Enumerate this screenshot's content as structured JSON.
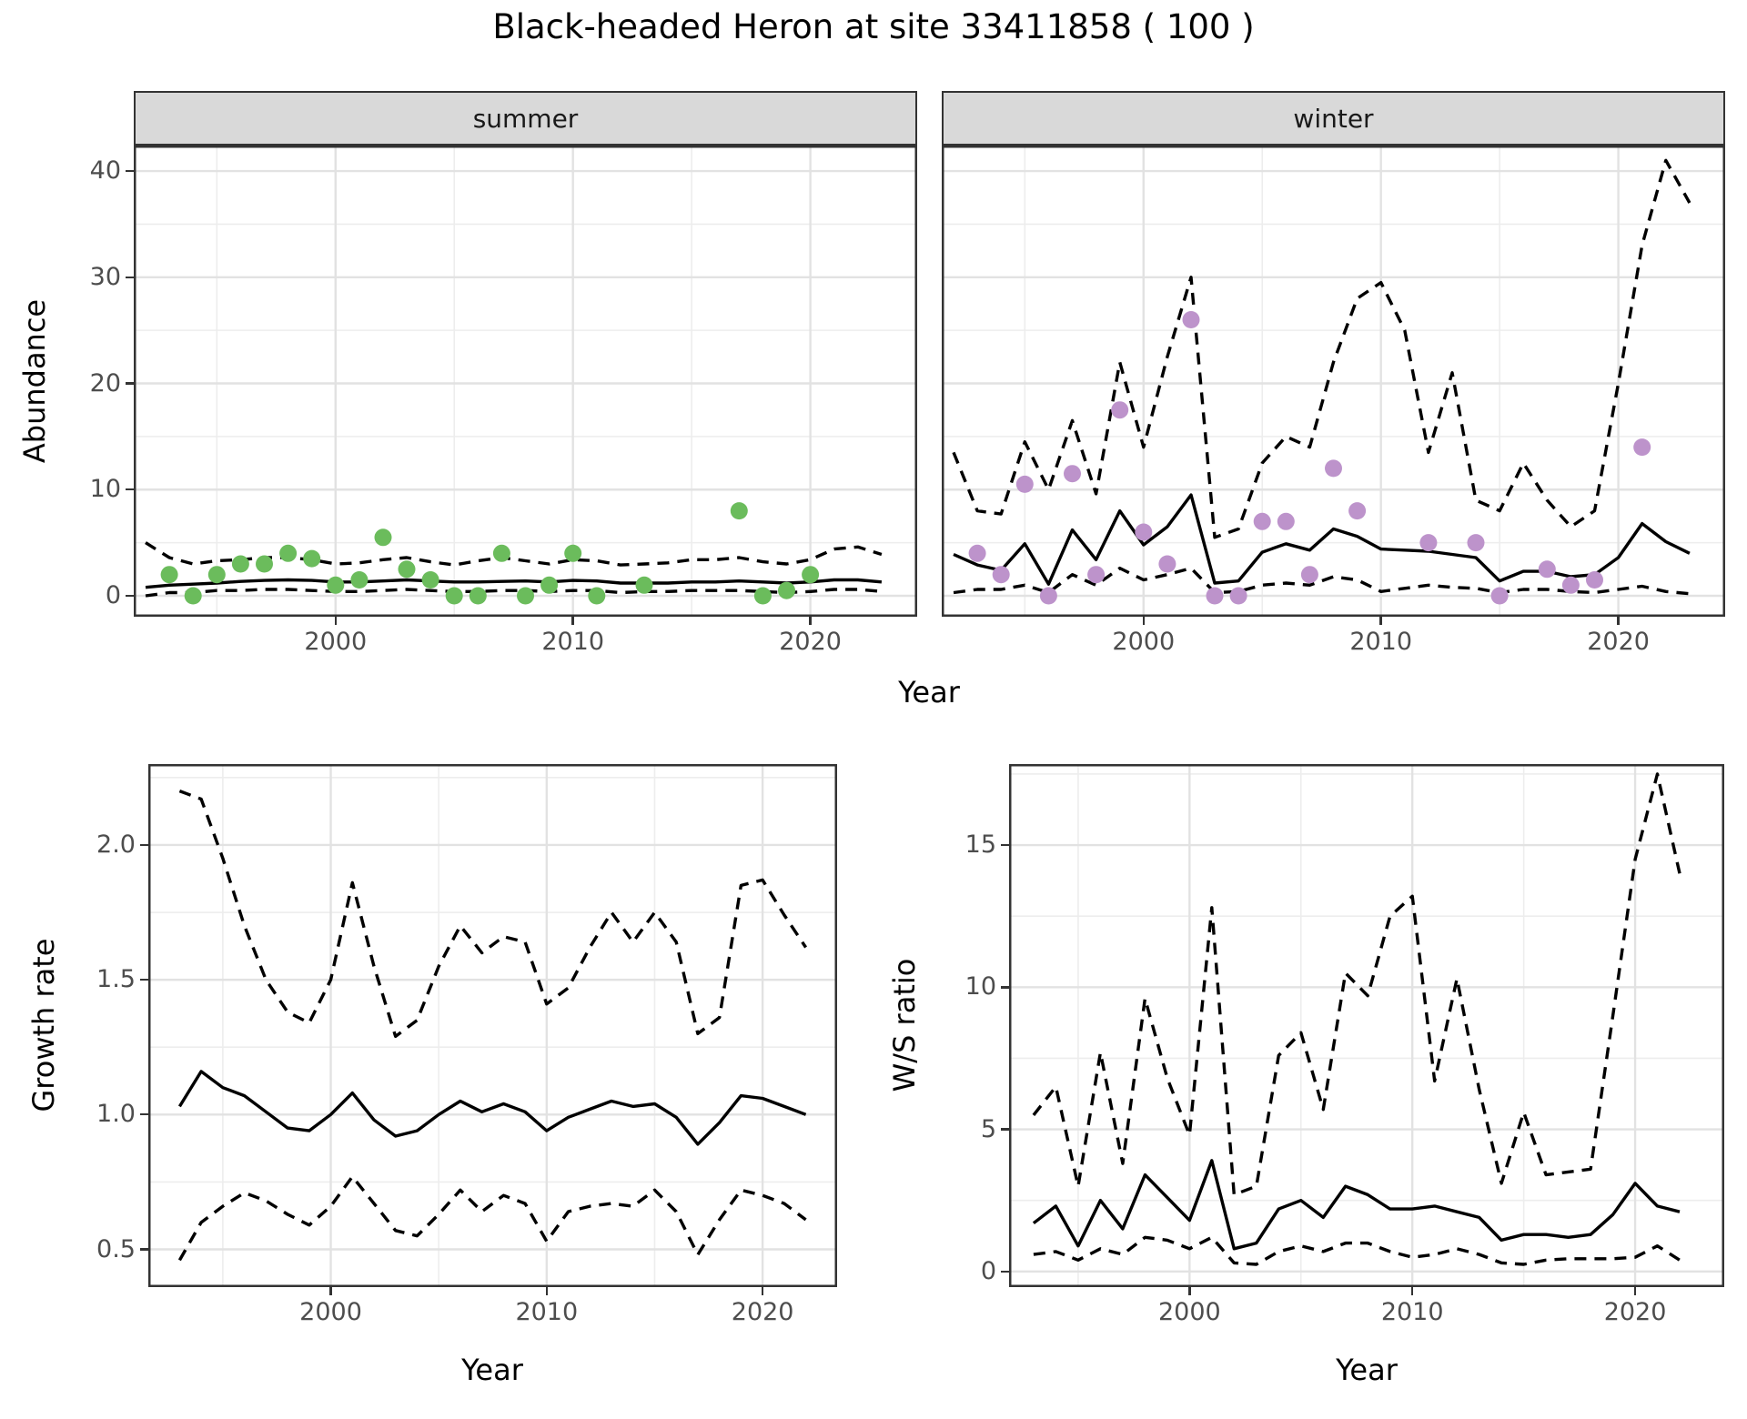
{
  "title": "Black-headed Heron at site 33411858 ( 100 )",
  "facets": [
    "summer",
    "winter"
  ],
  "axes": {
    "year_label": "Year",
    "abundance_label": "Abundance",
    "growth_label": "Growth rate",
    "ws_label": "W/S ratio"
  },
  "colors": {
    "summer_point": "#6bbc5c",
    "winter_point": "#bd93cb",
    "line": "#000000",
    "grid_major": "#e2e2e2",
    "grid_minor": "#ededed",
    "panel_border": "#333333",
    "strip_bg": "#d9d9d9",
    "tick_text": "#4d4d4d"
  },
  "chart_data": [
    {
      "key": "abundance_summer",
      "type": "line",
      "facet": "summer",
      "xlabel": "Year",
      "ylabel": "Abundance",
      "xlim": [
        1991.5,
        2024.5
      ],
      "ylim": [
        -1.97,
        42.4
      ],
      "xticks": [
        2000,
        2010,
        2020
      ],
      "xminor": [
        1995,
        2005,
        2015
      ],
      "yticks": [
        0,
        10,
        20,
        30,
        40
      ],
      "yminor": [
        5,
        15,
        25,
        35
      ],
      "y_labels": true,
      "years": [
        1992,
        1993,
        1994,
        1995,
        1996,
        1997,
        1998,
        1999,
        2000,
        2001,
        2002,
        2003,
        2004,
        2005,
        2006,
        2007,
        2008,
        2009,
        2010,
        2011,
        2012,
        2013,
        2014,
        2015,
        2016,
        2017,
        2018,
        2019,
        2020,
        2021,
        2022,
        2023
      ],
      "series": [
        {
          "name": "fit",
          "style": "solid",
          "values": [
            0.8,
            1.0,
            1.1,
            1.2,
            1.35,
            1.45,
            1.5,
            1.45,
            1.3,
            1.3,
            1.4,
            1.5,
            1.4,
            1.3,
            1.3,
            1.35,
            1.4,
            1.3,
            1.45,
            1.4,
            1.2,
            1.2,
            1.2,
            1.3,
            1.3,
            1.4,
            1.3,
            1.2,
            1.3,
            1.5,
            1.5,
            1.3
          ]
        },
        {
          "name": "upper_ci",
          "style": "dashed",
          "values": [
            5.0,
            3.6,
            3.0,
            3.3,
            3.4,
            3.6,
            3.6,
            3.4,
            3.0,
            3.1,
            3.4,
            3.6,
            3.2,
            2.9,
            3.3,
            3.6,
            3.3,
            3.0,
            3.4,
            3.3,
            2.9,
            3.0,
            3.1,
            3.4,
            3.4,
            3.6,
            3.2,
            3.0,
            3.4,
            4.4,
            4.6,
            3.9
          ]
        },
        {
          "name": "lower_ci",
          "style": "dashed",
          "values": [
            0.0,
            0.3,
            0.3,
            0.5,
            0.5,
            0.6,
            0.6,
            0.5,
            0.4,
            0.4,
            0.5,
            0.6,
            0.5,
            0.4,
            0.4,
            0.5,
            0.5,
            0.4,
            0.5,
            0.5,
            0.3,
            0.4,
            0.4,
            0.5,
            0.5,
            0.5,
            0.4,
            0.3,
            0.4,
            0.6,
            0.6,
            0.4
          ]
        }
      ],
      "points": [
        [
          1993,
          2
        ],
        [
          1994,
          0
        ],
        [
          1995,
          2
        ],
        [
          1996,
          3
        ],
        [
          1997,
          3
        ],
        [
          1998,
          4
        ],
        [
          1999,
          3.5
        ],
        [
          2000,
          1
        ],
        [
          2001,
          1.5
        ],
        [
          2002,
          5.5
        ],
        [
          2003,
          2.5
        ],
        [
          2004,
          1.5
        ],
        [
          2005,
          0
        ],
        [
          2006,
          0
        ],
        [
          2007,
          4
        ],
        [
          2008,
          0
        ],
        [
          2009,
          1
        ],
        [
          2010,
          4
        ],
        [
          2011,
          0
        ],
        [
          2013,
          1
        ],
        [
          2017,
          8
        ],
        [
          2018,
          0
        ],
        [
          2019,
          0.5
        ],
        [
          2020,
          2
        ]
      ],
      "point_color": "summer_point"
    },
    {
      "key": "abundance_winter",
      "type": "line",
      "facet": "winter",
      "xlabel": "Year",
      "ylabel": "Abundance",
      "xlim": [
        1991.5,
        2024.5
      ],
      "ylim": [
        -1.97,
        42.4
      ],
      "xticks": [
        2000,
        2010,
        2020
      ],
      "xminor": [
        1995,
        2005,
        2015
      ],
      "yticks": [
        0,
        10,
        20,
        30,
        40
      ],
      "yminor": [
        5,
        15,
        25,
        35
      ],
      "y_labels": false,
      "years": [
        1992,
        1993,
        1994,
        1995,
        1996,
        1997,
        1998,
        1999,
        2000,
        2001,
        2002,
        2003,
        2004,
        2005,
        2006,
        2007,
        2008,
        2009,
        2010,
        2011,
        2012,
        2013,
        2014,
        2015,
        2016,
        2017,
        2018,
        2019,
        2020,
        2021,
        2022,
        2023
      ],
      "series": [
        {
          "name": "fit",
          "style": "solid",
          "values": [
            3.9,
            2.9,
            2.4,
            4.9,
            1.1,
            6.2,
            3.4,
            8.0,
            4.8,
            6.5,
            9.5,
            1.2,
            1.4,
            4.1,
            4.9,
            4.3,
            6.3,
            5.6,
            4.4,
            4.3,
            4.2,
            3.9,
            3.6,
            1.4,
            2.3,
            2.3,
            1.8,
            2.0,
            3.6,
            6.8,
            5.1,
            4.0
          ]
        },
        {
          "name": "upper_ci",
          "style": "dashed",
          "values": [
            13.5,
            8.0,
            7.7,
            14.5,
            10.0,
            16.5,
            9.6,
            22.0,
            14.0,
            22.5,
            30.0,
            5.5,
            6.3,
            12.5,
            15.0,
            14.0,
            22.0,
            28.0,
            29.5,
            25.0,
            13.5,
            21.0,
            9.0,
            8.0,
            12.5,
            9.0,
            6.5,
            8.0,
            20.0,
            33.0,
            41.0,
            37.0
          ]
        },
        {
          "name": "lower_ci",
          "style": "dashed",
          "values": [
            0.3,
            0.6,
            0.6,
            1.0,
            0.3,
            2.0,
            1.0,
            2.6,
            1.5,
            2.0,
            2.6,
            0.3,
            0.4,
            1.0,
            1.2,
            1.0,
            1.8,
            1.5,
            0.4,
            0.7,
            1.0,
            0.8,
            0.7,
            0.3,
            0.6,
            0.6,
            0.4,
            0.3,
            0.6,
            0.9,
            0.4,
            0.2
          ]
        }
      ],
      "points": [
        [
          1993,
          4
        ],
        [
          1994,
          2
        ],
        [
          1995,
          10.5
        ],
        [
          1996,
          0
        ],
        [
          1997,
          11.5
        ],
        [
          1998,
          2
        ],
        [
          1999,
          17.5
        ],
        [
          2000,
          6
        ],
        [
          2001,
          3
        ],
        [
          2002,
          26
        ],
        [
          2003,
          0
        ],
        [
          2004,
          0
        ],
        [
          2005,
          7
        ],
        [
          2006,
          7
        ],
        [
          2007,
          2
        ],
        [
          2008,
          12
        ],
        [
          2009,
          8
        ],
        [
          2012,
          5
        ],
        [
          2014,
          5
        ],
        [
          2015,
          0
        ],
        [
          2017,
          2.5
        ],
        [
          2018,
          1
        ],
        [
          2019,
          1.5
        ],
        [
          2021,
          14
        ]
      ],
      "point_color": "winter_point"
    },
    {
      "key": "growth",
      "type": "line",
      "xlabel": "Year",
      "ylabel": "Growth rate",
      "xlim": [
        1991.55,
        2023.45
      ],
      "ylim": [
        0.36,
        2.3
      ],
      "xticks": [
        2000,
        2010,
        2020
      ],
      "xminor": [
        1995,
        2005,
        2015
      ],
      "yticks": [
        0.5,
        1.0,
        1.5,
        2.0
      ],
      "ytick_labels": [
        "0.5",
        "1.0",
        "1.5",
        "2.0"
      ],
      "yminor": [
        0.75,
        1.25,
        1.75,
        2.25
      ],
      "y_labels": true,
      "years": [
        1993,
        1994,
        1995,
        1996,
        1997,
        1998,
        1999,
        2000,
        2001,
        2002,
        2003,
        2004,
        2005,
        2006,
        2007,
        2008,
        2009,
        2010,
        2011,
        2012,
        2013,
        2014,
        2015,
        2016,
        2017,
        2018,
        2019,
        2020,
        2021,
        2022
      ],
      "series": [
        {
          "name": "fit",
          "style": "solid",
          "values": [
            1.03,
            1.16,
            1.1,
            1.07,
            1.01,
            0.95,
            0.94,
            1.0,
            1.08,
            0.98,
            0.92,
            0.94,
            1.0,
            1.05,
            1.01,
            1.04,
            1.01,
            0.94,
            0.99,
            1.02,
            1.05,
            1.03,
            1.04,
            0.99,
            0.89,
            0.97,
            1.07,
            1.06,
            1.03,
            1.0
          ]
        },
        {
          "name": "upper_ci",
          "style": "dashed",
          "values": [
            2.2,
            2.17,
            1.95,
            1.7,
            1.5,
            1.38,
            1.34,
            1.5,
            1.86,
            1.55,
            1.29,
            1.35,
            1.55,
            1.7,
            1.6,
            1.66,
            1.64,
            1.41,
            1.47,
            1.62,
            1.75,
            1.64,
            1.75,
            1.64,
            1.3,
            1.36,
            1.85,
            1.87,
            1.74,
            1.62
          ]
        },
        {
          "name": "lower_ci",
          "style": "dashed",
          "values": [
            0.46,
            0.6,
            0.66,
            0.71,
            0.68,
            0.63,
            0.59,
            0.66,
            0.77,
            0.67,
            0.57,
            0.55,
            0.63,
            0.72,
            0.64,
            0.7,
            0.67,
            0.53,
            0.64,
            0.66,
            0.67,
            0.66,
            0.72,
            0.64,
            0.48,
            0.61,
            0.72,
            0.7,
            0.67,
            0.61
          ]
        }
      ],
      "points": [],
      "point_color": null
    },
    {
      "key": "ws",
      "type": "line",
      "xlabel": "Year",
      "ylabel": "W/S ratio",
      "xlim": [
        1991.9,
        2024.0
      ],
      "ylim": [
        -0.55,
        17.85
      ],
      "xticks": [
        2000,
        2010,
        2020
      ],
      "xminor": [
        1995,
        2005,
        2015
      ],
      "yticks": [
        0,
        5,
        10,
        15
      ],
      "yminor": [
        2.5,
        7.5,
        12.5,
        17.5
      ],
      "y_labels": true,
      "years": [
        1993,
        1994,
        1995,
        1996,
        1997,
        1998,
        1999,
        2000,
        2001,
        2002,
        2003,
        2004,
        2005,
        2006,
        2007,
        2008,
        2009,
        2010,
        2011,
        2012,
        2013,
        2014,
        2015,
        2016,
        2017,
        2018,
        2019,
        2020,
        2021,
        2022
      ],
      "series": [
        {
          "name": "fit",
          "style": "solid",
          "values": [
            1.7,
            2.3,
            0.9,
            2.5,
            1.5,
            3.4,
            2.6,
            1.8,
            3.9,
            0.8,
            1.0,
            2.2,
            2.5,
            1.9,
            3.0,
            2.7,
            2.2,
            2.2,
            2.3,
            2.1,
            1.9,
            1.1,
            1.3,
            1.3,
            1.2,
            1.3,
            2.0,
            3.1,
            2.3,
            2.1
          ]
        },
        {
          "name": "upper_ci",
          "style": "dashed",
          "values": [
            5.5,
            6.5,
            3.0,
            7.7,
            3.8,
            9.6,
            6.8,
            4.8,
            12.8,
            2.7,
            3.0,
            7.6,
            8.4,
            5.7,
            10.5,
            9.7,
            12.5,
            13.2,
            6.7,
            10.3,
            6.4,
            3.1,
            5.6,
            3.4,
            3.5,
            3.6,
            9.0,
            14.5,
            17.5,
            14.0
          ]
        },
        {
          "name": "lower_ci",
          "style": "dashed",
          "values": [
            0.6,
            0.7,
            0.4,
            0.8,
            0.6,
            1.2,
            1.1,
            0.8,
            1.2,
            0.3,
            0.25,
            0.7,
            0.9,
            0.7,
            1.0,
            1.0,
            0.7,
            0.5,
            0.6,
            0.8,
            0.6,
            0.3,
            0.25,
            0.4,
            0.45,
            0.45,
            0.45,
            0.5,
            0.9,
            0.4
          ]
        }
      ],
      "points": [],
      "point_color": null
    }
  ]
}
